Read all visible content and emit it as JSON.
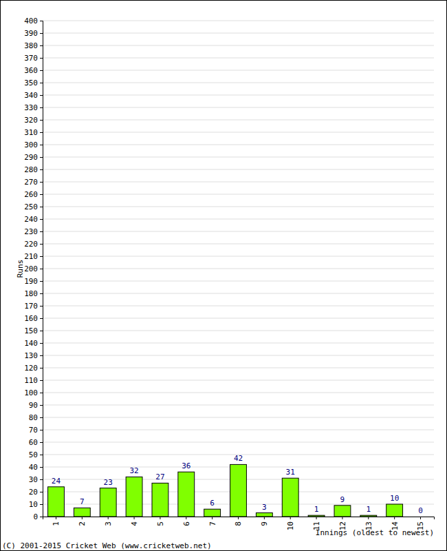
{
  "chart_data": {
    "type": "bar",
    "x_label": "Innings (oldest to newest)",
    "y_label": "Runs",
    "annotations": [
      "(C) 2001-2015 Cricket Web (www.cricketweb.net)"
    ],
    "categories": [
      "1",
      "2",
      "3",
      "4",
      "5",
      "6",
      "7",
      "8",
      "9",
      "10",
      "11",
      "12",
      "13",
      "14",
      "15"
    ],
    "values": [
      24,
      7,
      23,
      32,
      27,
      36,
      6,
      42,
      3,
      31,
      1,
      9,
      1,
      10,
      0
    ],
    "color": "#80ff00",
    "ylim": [
      0,
      400
    ],
    "yticks": [
      0,
      10,
      20,
      30,
      40,
      50,
      60,
      70,
      80,
      90,
      100,
      110,
      120,
      130,
      140,
      150,
      160,
      170,
      180,
      190,
      200,
      210,
      220,
      230,
      240,
      250,
      260,
      270,
      280,
      290,
      300,
      310,
      320,
      330,
      340,
      350,
      360,
      370,
      380,
      390,
      400
    ],
    "grid": true,
    "data_labels": true
  }
}
